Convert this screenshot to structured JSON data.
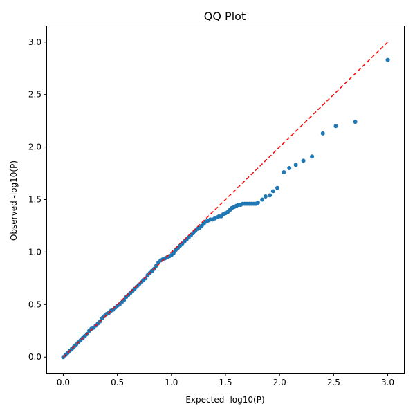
{
  "chart_data": {
    "type": "scatter",
    "title": "QQ Plot",
    "xlabel": "Expected -log10(P)",
    "ylabel": "Observed -log10(P)",
    "xlim": [
      -0.15,
      3.15
    ],
    "ylim": [
      -0.15,
      3.15
    ],
    "x_ticks": [
      "0.0",
      "0.5",
      "1.0",
      "1.5",
      "2.0",
      "2.5",
      "3.0"
    ],
    "y_ticks": [
      "0.0",
      "0.5",
      "1.0",
      "1.5",
      "2.0",
      "2.5",
      "3.0"
    ],
    "grid": false,
    "colors": {
      "points": "#1f77b4",
      "reference_line": "#ff0000"
    },
    "reference_line": {
      "style": "dashed",
      "from": [
        0,
        0
      ],
      "to": [
        3.0,
        3.0
      ]
    },
    "series": [
      {
        "x": [
          0.0,
          0.02,
          0.04,
          0.06,
          0.08,
          0.1,
          0.12,
          0.14,
          0.16,
          0.18,
          0.2,
          0.22,
          0.24,
          0.26,
          0.28,
          0.3,
          0.32,
          0.34,
          0.36,
          0.38,
          0.4,
          0.42,
          0.44,
          0.46,
          0.48,
          0.5,
          0.52,
          0.54,
          0.56,
          0.58,
          0.6,
          0.62,
          0.64,
          0.66,
          0.68,
          0.7,
          0.72,
          0.74,
          0.76,
          0.78,
          0.8,
          0.82,
          0.84,
          0.86,
          0.88,
          0.9,
          0.92,
          0.94,
          0.96,
          0.98,
          1.0,
          1.02,
          1.04,
          1.06,
          1.08,
          1.1,
          1.12,
          1.14,
          1.16,
          1.18,
          1.2,
          1.22,
          1.24,
          1.26,
          1.28,
          1.3,
          1.32,
          1.34,
          1.36,
          1.38,
          1.4,
          1.42,
          1.44,
          1.46,
          1.48,
          1.5,
          1.52,
          1.54,
          1.56,
          1.58,
          1.6,
          1.62,
          1.64,
          1.66,
          1.68,
          1.7,
          1.72,
          1.74,
          1.76,
          1.78,
          1.8,
          1.84,
          1.87,
          1.91,
          1.94,
          1.98,
          2.04,
          2.09,
          2.15,
          2.22,
          2.3,
          2.4,
          2.52,
          2.7,
          3.0
        ],
        "y": [
          0.0,
          0.02,
          0.04,
          0.06,
          0.08,
          0.1,
          0.12,
          0.14,
          0.16,
          0.18,
          0.2,
          0.22,
          0.25,
          0.27,
          0.28,
          0.3,
          0.32,
          0.34,
          0.37,
          0.39,
          0.41,
          0.42,
          0.44,
          0.45,
          0.47,
          0.49,
          0.5,
          0.52,
          0.54,
          0.57,
          0.59,
          0.61,
          0.63,
          0.65,
          0.67,
          0.69,
          0.71,
          0.73,
          0.75,
          0.78,
          0.8,
          0.82,
          0.84,
          0.87,
          0.9,
          0.92,
          0.93,
          0.94,
          0.95,
          0.96,
          0.97,
          0.99,
          1.02,
          1.04,
          1.06,
          1.08,
          1.1,
          1.12,
          1.14,
          1.16,
          1.18,
          1.2,
          1.22,
          1.23,
          1.25,
          1.27,
          1.29,
          1.3,
          1.31,
          1.31,
          1.32,
          1.33,
          1.34,
          1.34,
          1.36,
          1.37,
          1.38,
          1.4,
          1.42,
          1.43,
          1.44,
          1.45,
          1.45,
          1.46,
          1.46,
          1.46,
          1.46,
          1.46,
          1.46,
          1.46,
          1.47,
          1.5,
          1.53,
          1.54,
          1.58,
          1.61,
          1.76,
          1.8,
          1.83,
          1.87,
          1.91,
          2.13,
          2.2,
          2.24,
          2.83
        ]
      }
    ]
  }
}
